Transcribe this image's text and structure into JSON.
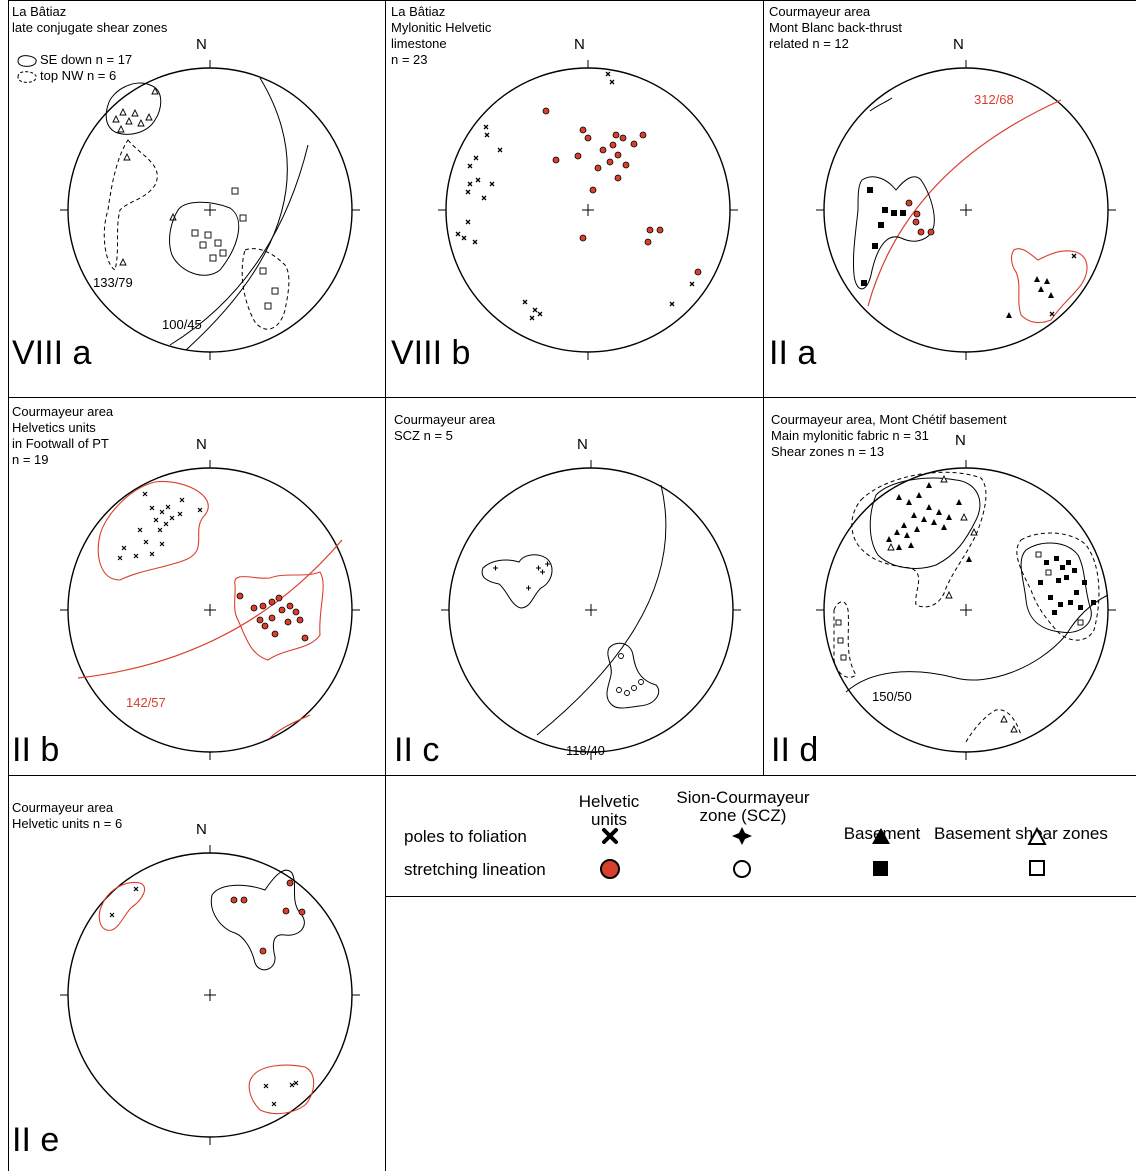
{
  "panels": {
    "p1": {
      "line1": "La Bâtiaz",
      "line2": "late conjugate shear zones",
      "leg1": "SE down n = 17",
      "leg2": "top NW n = 6",
      "id": "VIII a",
      "north": "N",
      "label_a": "133/79",
      "label_b": "100/45"
    },
    "p2": {
      "line1": "La Bâtiaz",
      "line2": "Mylonitic Helvetic",
      "line3": "limestone",
      "line4": "n = 23",
      "id": "VIII b",
      "north": "N"
    },
    "p3": {
      "line1": "Courmayeur area",
      "line2": "Mont Blanc back-thrust",
      "line3": "related n = 12",
      "id": "II a",
      "north": "N",
      "label_a": "312/68"
    },
    "p4": {
      "line1": "Courmayeur area",
      "line2": "Helvetics units",
      "line3": "in Footwall of PT",
      "line4": "n = 19",
      "id": "II b",
      "north": "N",
      "label_a": "142/57"
    },
    "p5": {
      "line1": "Courmayeur area",
      "line2": "SCZ n = 5",
      "id": "II c",
      "north": "N",
      "label_a": "118/40"
    },
    "p6": {
      "line1": "Courmayeur area, Mont Chétif basement",
      "line2": "Main mylonitic fabric n = 31",
      "line3": "Shear zones n = 13",
      "id": "II d",
      "north": "N",
      "label_a": "150/50"
    },
    "p7": {
      "line1": "Courmayeur area",
      "line2": "Helvetic units n = 6",
      "id": "II e",
      "north": "N"
    }
  },
  "legend": {
    "col1": "Helvetic\nunits",
    "col2": "Sion-Courmayeur\nzone (SCZ)",
    "col3": "Basement",
    "col4": "Basement shear zones",
    "row1": "poles to foliation",
    "row2": "stretching lineation"
  },
  "colors": {
    "red": "#d8402e",
    "black": "#000000"
  }
}
